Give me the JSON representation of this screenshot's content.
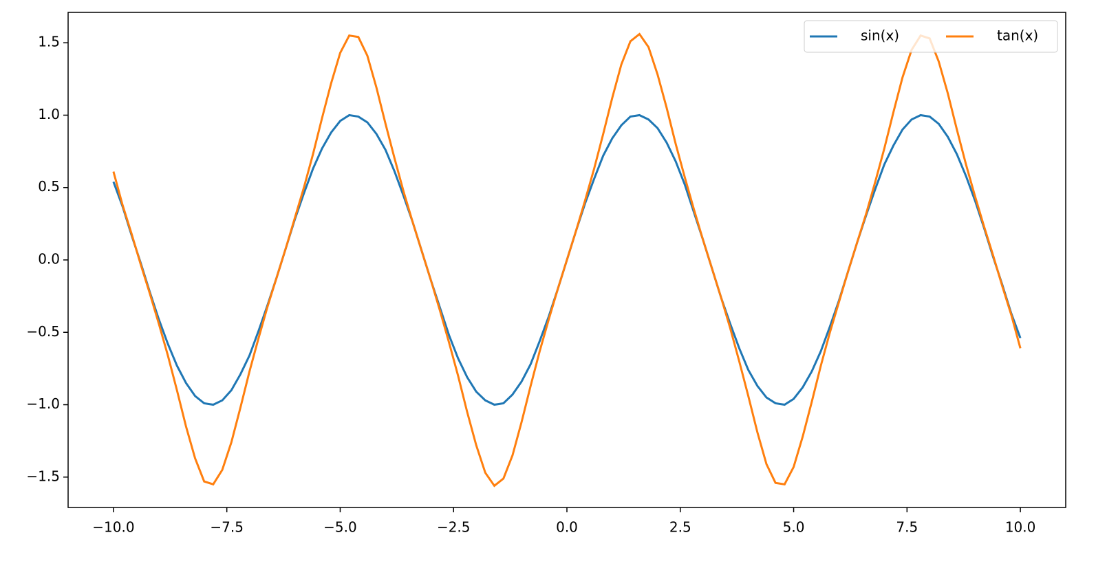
{
  "chart_data": {
    "type": "line",
    "x": [
      -10,
      -9.8,
      -9.6,
      -9.4,
      -9.2,
      -9,
      -8.8,
      -8.6,
      -8.4,
      -8.2,
      -8,
      -7.8,
      -7.6,
      -7.4,
      -7.2,
      -7,
      -6.8,
      -6.6,
      -6.4,
      -6.2,
      -6,
      -5.8,
      -5.6,
      -5.4,
      -5.2,
      -5,
      -4.8,
      -4.6,
      -4.4,
      -4.2,
      -4,
      -3.8,
      -3.6,
      -3.4,
      -3.2,
      -3,
      -2.8,
      -2.6,
      -2.4,
      -2.2,
      -2,
      -1.8,
      -1.6,
      -1.4,
      -1.2,
      -1,
      -0.8,
      -0.6,
      -0.4,
      -0.2,
      0,
      0.2,
      0.4,
      0.6,
      0.8,
      1,
      1.2,
      1.4,
      1.6,
      1.8,
      2,
      2.2,
      2.4,
      2.6,
      2.8,
      3,
      3.2,
      3.4,
      3.6,
      3.8,
      4,
      4.2,
      4.4,
      4.6,
      4.8,
      5,
      5.2,
      5.4,
      5.6,
      5.8,
      6,
      6.2,
      6.4,
      6.6,
      6.8,
      7,
      7.2,
      7.4,
      7.6,
      7.8,
      8,
      8.2,
      8.4,
      8.6,
      8.8,
      9,
      9.2,
      9.4,
      9.6,
      9.8,
      10
    ],
    "series": [
      {
        "name": "sin(x)",
        "color": "#1f77b4",
        "values": [
          0.54,
          0.37,
          0.17,
          -0.02,
          -0.22,
          -0.41,
          -0.58,
          -0.73,
          -0.85,
          -0.94,
          -0.99,
          -1.0,
          -0.97,
          -0.9,
          -0.79,
          -0.66,
          -0.49,
          -0.31,
          -0.12,
          0.08,
          0.28,
          0.46,
          0.63,
          0.77,
          0.88,
          0.96,
          1.0,
          0.99,
          0.95,
          0.87,
          0.76,
          0.61,
          0.44,
          0.26,
          0.06,
          -0.14,
          -0.33,
          -0.52,
          -0.68,
          -0.81,
          -0.91,
          -0.97,
          -1.0,
          -0.99,
          -0.93,
          -0.84,
          -0.72,
          -0.56,
          -0.39,
          -0.2,
          0,
          0.2,
          0.39,
          0.56,
          0.72,
          0.84,
          0.93,
          0.99,
          1.0,
          0.97,
          0.91,
          0.81,
          0.68,
          0.52,
          0.33,
          0.14,
          -0.06,
          -0.26,
          -0.44,
          -0.61,
          -0.76,
          -0.87,
          -0.95,
          -0.99,
          -1.0,
          -0.96,
          -0.88,
          -0.77,
          -0.63,
          -0.46,
          -0.28,
          -0.08,
          0.12,
          0.31,
          0.49,
          0.66,
          0.79,
          0.9,
          0.97,
          1.0,
          0.99,
          0.94,
          0.85,
          0.73,
          0.58,
          0.41,
          0.22,
          0.02,
          -0.17,
          -0.37,
          -0.54
        ]
      },
      {
        "name": "tan(x)",
        "color": "#ff7f0e",
        "values": [
          0.61,
          0.38,
          0.18,
          -0.03,
          -0.23,
          -0.44,
          -0.66,
          -0.9,
          -1.15,
          -1.37,
          -1.53,
          -1.55,
          -1.45,
          -1.26,
          -1.02,
          -0.77,
          -0.54,
          -0.32,
          -0.12,
          0.08,
          0.29,
          0.5,
          0.73,
          0.98,
          1.22,
          1.43,
          1.55,
          1.54,
          1.41,
          1.19,
          0.94,
          0.7,
          0.47,
          0.26,
          0.06,
          -0.14,
          -0.35,
          -0.57,
          -0.8,
          -1.05,
          -1.28,
          -1.47,
          -1.56,
          -1.51,
          -1.35,
          -1.12,
          -0.87,
          -0.63,
          -0.41,
          -0.2,
          0,
          0.2,
          0.41,
          0.63,
          0.87,
          1.12,
          1.35,
          1.51,
          1.56,
          1.47,
          1.28,
          1.05,
          0.8,
          0.57,
          0.35,
          0.14,
          -0.06,
          -0.26,
          -0.47,
          -0.7,
          -0.94,
          -1.19,
          -1.41,
          -1.54,
          -1.55,
          -1.43,
          -1.22,
          -0.98,
          -0.73,
          -0.5,
          -0.29,
          -0.08,
          0.12,
          0.32,
          0.54,
          0.77,
          1.02,
          1.26,
          1.45,
          1.55,
          1.53,
          1.37,
          1.15,
          0.9,
          0.66,
          0.44,
          0.23,
          0.03,
          -0.18,
          -0.38,
          -0.61
        ]
      }
    ],
    "xlim": [
      -11,
      11
    ],
    "ylim": [
      -1.71,
      1.71
    ],
    "xticks": [
      {
        "value": -10,
        "label": "−10.0"
      },
      {
        "value": -7.5,
        "label": "−7.5"
      },
      {
        "value": -5,
        "label": "−5.0"
      },
      {
        "value": -2.5,
        "label": "−2.5"
      },
      {
        "value": 0,
        "label": "0.0"
      },
      {
        "value": 2.5,
        "label": "2.5"
      },
      {
        "value": 5,
        "label": "5.0"
      },
      {
        "value": 7.5,
        "label": "7.5"
      },
      {
        "value": 10,
        "label": "10.0"
      }
    ],
    "yticks": [
      {
        "value": -1.5,
        "label": "−1.5"
      },
      {
        "value": -1,
        "label": "−1.0"
      },
      {
        "value": -0.5,
        "label": "−0.5"
      },
      {
        "value": 0,
        "label": "0.0"
      },
      {
        "value": 0.5,
        "label": "0.5"
      },
      {
        "value": 1,
        "label": "1.0"
      },
      {
        "value": 1.5,
        "label": "1.5"
      }
    ],
    "legend": "upper right",
    "grid": false
  }
}
